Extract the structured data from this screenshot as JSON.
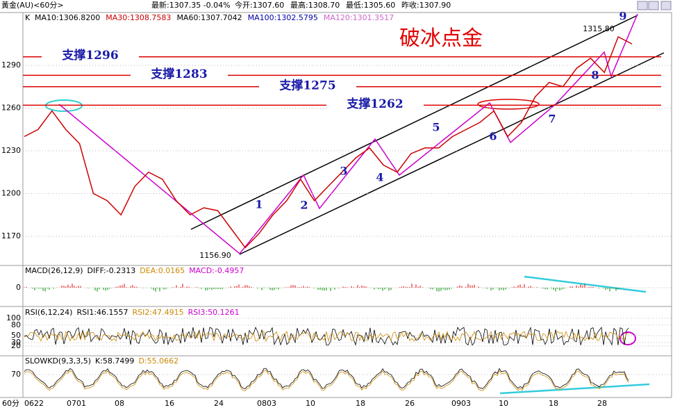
{
  "header": {
    "name": "黃金(AU)<60分>",
    "latest": "最新:1307.35 -0.04%",
    "open": "今开:1307.60",
    "high": "最高:1308.70",
    "low": "最低:1305.60",
    "prev_close": "昨收:1307.90"
  },
  "main_panel": {
    "indicators": [
      "K",
      "MA10:1306.8200",
      "MA30:1308.7583",
      "MA60:1307.7042",
      "MA100:1302.5795",
      "MA120:1301.3517"
    ],
    "yticks": [
      1290,
      1260,
      1230,
      1200,
      1170
    ],
    "ylim": [
      1155,
      1320
    ],
    "price": [
      1240,
      1245,
      1258,
      1245,
      1235,
      1200,
      1195,
      1185,
      1205,
      1215,
      1210,
      1195,
      1185,
      1190,
      1188,
      1175,
      1162,
      1172,
      1185,
      1195,
      1210,
      1195,
      1205,
      1215,
      1225,
      1232,
      1220,
      1215,
      1228,
      1232,
      1232,
      1240,
      1245,
      1250,
      1258,
      1240,
      1250,
      1268,
      1278,
      1275,
      1288,
      1295,
      1285,
      1310,
      1305
    ],
    "title": "破冰点金",
    "supports": [
      "支撑1296",
      "支撑1283",
      "支撑1275",
      "支撑1262"
    ],
    "support_levels": [
      1296,
      1283,
      1275,
      1262
    ],
    "waves": [
      "1",
      "2",
      "3",
      "4",
      "5",
      "6",
      "7",
      "8",
      "9"
    ],
    "high_label": "1315.80",
    "low_label": "1156.90"
  },
  "macd_panel": {
    "label": "MACD(26,12,9)",
    "diff": "DIFF:-0.2313",
    "dea": "DEA:0.0165",
    "macd": "MACD:-0.4957",
    "yticks": [
      0
    ]
  },
  "rsi_panel": {
    "label": "RSI(6,12,24)",
    "rsi1": "RSI1:46.1557",
    "rsi2": "RSI2:47.4915",
    "rsi3": "RSI3:50.1261",
    "yticks": [
      100,
      80,
      50,
      30,
      20
    ]
  },
  "kd_panel": {
    "label": "SLOWKD(9,3,3,5)",
    "k": "K:58.7499",
    "d": "D:55.0662",
    "yticks": [
      70
    ]
  },
  "x_axis": {
    "period": "60分",
    "labels": [
      "0622",
      "0701",
      "08",
      "16",
      "24",
      "0803",
      "10",
      "18",
      "26",
      "0903",
      "10",
      "18",
      "28"
    ]
  }
}
